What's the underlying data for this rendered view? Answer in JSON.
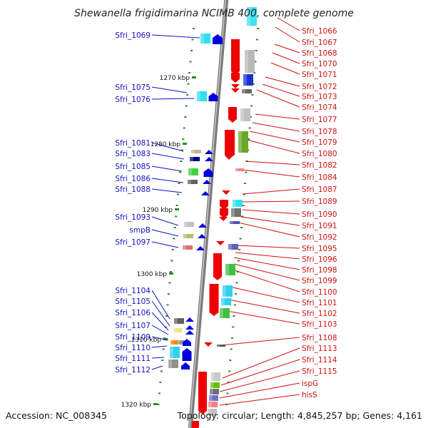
{
  "title": "Shewanella frigidimarina NCIMB 400, complete genome",
  "accession": "Accession: NC_008345",
  "summary": "Topology: circular; Length: 4,845,257 bp; Genes: 4,161",
  "kbp_labels": [
    "1270 kbp",
    "1280 kbp",
    "1290 kbp",
    "1300 kbp",
    "1310 kbp",
    "1320 kbp"
  ],
  "reverse_labels": [
    "Sfri_1069",
    "Sfri_1075",
    "Sfri_1076",
    "Sfri_1081",
    "Sfri_1083",
    "Sfri_1085",
    "Sfri_1086",
    "Sfri_1088",
    "Sfri_1093",
    "smpB",
    "Sfri_1097",
    "Sfri_1104",
    "Sfri_1105",
    "Sfri_1106",
    "Sfri_1107",
    "Sfri_1109",
    "Sfri_1110",
    "Sfri_1111",
    "Sfri_1112"
  ],
  "forward_labels": [
    "Sfri_1066",
    "Sfri_1067",
    "Sfri_1068",
    "Sfri_1070",
    "Sfri_1071",
    "Sfri_1072",
    "Sfri_1073",
    "Sfri_1074",
    "Sfri_1077",
    "Sfri_1078",
    "Sfri_1079",
    "Sfri_1080",
    "Sfri_1082",
    "Sfri_1084",
    "Sfri_1087",
    "Sfri_1089",
    "Sfri_1090",
    "Sfri_1091",
    "Sfri_1092",
    "Sfri_1095",
    "Sfri_1096",
    "Sfri_1098",
    "Sfri_1099",
    "Sfri_1100",
    "Sfri_1101",
    "Sfri_1102",
    "Sfri_1103",
    "Sfri_1108",
    "Sfri_1113",
    "Sfri_1114",
    "Sfri_1115",
    "ispG",
    "hisS"
  ],
  "colors": {
    "backbone": "#8a8a8a",
    "reverse_arrow": "#0000dd",
    "forward_arrow": "#ee0000",
    "reverse_label": "#1010c0",
    "forward_label": "#d01010",
    "tick": "#2a8a2a"
  }
}
